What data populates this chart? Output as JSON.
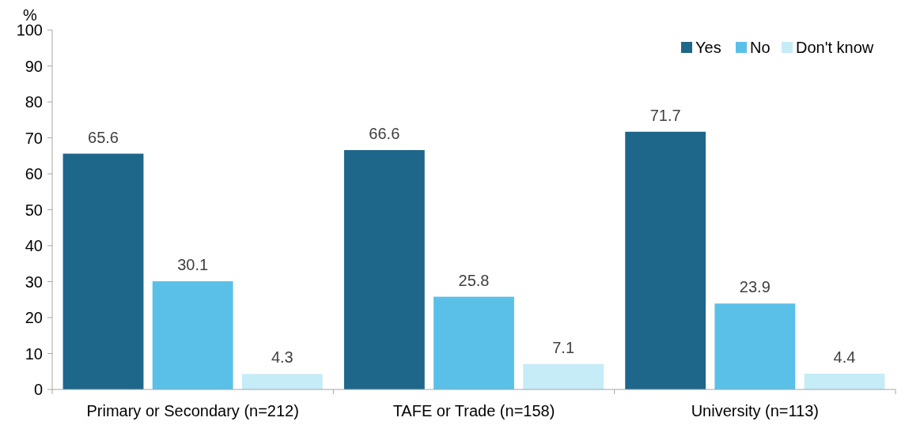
{
  "chart_data": {
    "type": "bar",
    "ylabel": "%",
    "categories": [
      "Primary or Secondary (n=212)",
      "TAFE or Trade (n=158)",
      "University (n=113)"
    ],
    "series": [
      {
        "name": "Yes",
        "color": "#1f668b",
        "values": [
          65.6,
          66.6,
          71.7
        ]
      },
      {
        "name": "No",
        "color": "#5bc0e8",
        "values": [
          30.1,
          25.8,
          23.9
        ]
      },
      {
        "name": "Don't know",
        "color": "#c5ecf7",
        "values": [
          4.3,
          7.1,
          4.4
        ]
      }
    ],
    "ylim": [
      0,
      100
    ],
    "yticks": [
      0,
      10,
      20,
      30,
      40,
      50,
      60,
      70,
      80,
      90,
      100
    ],
    "data_labels": true,
    "grid": false,
    "legend": "top right"
  }
}
